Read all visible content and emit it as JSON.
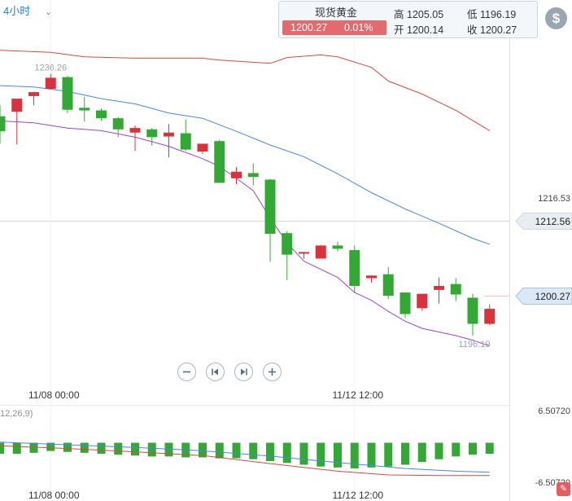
{
  "header": {
    "period_label": "4小时"
  },
  "quote": {
    "name": "现货黄金",
    "price": "1200.27",
    "change_pct": "0.01%",
    "high_label": "高",
    "high_value": "1205.05",
    "low_label": "低",
    "low_value": "1196.19",
    "open_label": "开",
    "open_value": "1200.14",
    "close_label": "收",
    "close_value": "1200.27"
  },
  "icons": {
    "dollar": "dollar-icon",
    "zoom_out": "minus-circle-icon",
    "prev": "step-back-icon",
    "next": "step-forward-icon",
    "zoom_in": "plus-circle-icon",
    "settings": "settings-icon"
  },
  "chart_data": [
    {
      "type": "candlestick",
      "title": "",
      "ylim": [
        1192.7,
        1242.0
      ],
      "y_axis_labels": [
        "1216.53"
      ],
      "price_tags": [
        "1212.56",
        "1200.27"
      ],
      "annotations": [
        "1236.26",
        "1196.19"
      ],
      "x_tick_labels": [
        "11/08 00:00",
        "11/12 12:00"
      ],
      "x_tick_index": [
        3,
        21
      ],
      "candles": [
        {
          "o": 1229.8,
          "h": 1231.5,
          "l": 1225.6,
          "c": 1227.5
        },
        {
          "o": 1230.5,
          "h": 1232.5,
          "l": 1225.5,
          "c": 1232.5
        },
        {
          "o": 1232.9,
          "h": 1233.5,
          "l": 1231.5,
          "c": 1233.5
        },
        {
          "o": 1234.0,
          "h": 1236.3,
          "l": 1234.0,
          "c": 1235.7
        },
        {
          "o": 1235.8,
          "h": 1236.0,
          "l": 1230.3,
          "c": 1230.8
        },
        {
          "o": 1231.1,
          "h": 1232.8,
          "l": 1229.0,
          "c": 1230.7
        },
        {
          "o": 1230.7,
          "h": 1231.0,
          "l": 1229.1,
          "c": 1229.5
        },
        {
          "o": 1229.5,
          "h": 1229.7,
          "l": 1226.6,
          "c": 1227.8
        },
        {
          "o": 1227.3,
          "h": 1228.4,
          "l": 1224.5,
          "c": 1228.0
        },
        {
          "o": 1227.8,
          "h": 1228.0,
          "l": 1225.3,
          "c": 1226.6
        },
        {
          "o": 1226.7,
          "h": 1228.6,
          "l": 1223.5,
          "c": 1227.3
        },
        {
          "o": 1227.2,
          "h": 1229.3,
          "l": 1224.5,
          "c": 1224.7
        },
        {
          "o": 1224.4,
          "h": 1225.4,
          "l": 1224.0,
          "c": 1225.6
        },
        {
          "o": 1226.0,
          "h": 1226.2,
          "l": 1219.6,
          "c": 1219.6
        },
        {
          "o": 1220.3,
          "h": 1222.0,
          "l": 1219.4,
          "c": 1221.3
        },
        {
          "o": 1221.1,
          "h": 1222.6,
          "l": 1219.2,
          "c": 1220.5
        },
        {
          "o": 1220.1,
          "h": 1220.2,
          "l": 1207.5,
          "c": 1211.8
        },
        {
          "o": 1211.9,
          "h": 1212.2,
          "l": 1204.7,
          "c": 1208.6
        },
        {
          "o": 1208.8,
          "h": 1209.0,
          "l": 1208.0,
          "c": 1209.0
        },
        {
          "o": 1208.0,
          "h": 1210.1,
          "l": 1208.0,
          "c": 1210.0
        },
        {
          "o": 1210.0,
          "h": 1210.6,
          "l": 1209.1,
          "c": 1209.5
        },
        {
          "o": 1209.3,
          "h": 1210.0,
          "l": 1202.8,
          "c": 1203.8
        },
        {
          "o": 1205.0,
          "h": 1205.4,
          "l": 1204.3,
          "c": 1205.4
        },
        {
          "o": 1205.6,
          "h": 1206.7,
          "l": 1201.8,
          "c": 1202.3
        },
        {
          "o": 1202.8,
          "h": 1202.8,
          "l": 1198.9,
          "c": 1199.5
        },
        {
          "o": 1200.4,
          "h": 1202.6,
          "l": 1200.0,
          "c": 1202.6
        },
        {
          "o": 1203.2,
          "h": 1205.1,
          "l": 1201.1,
          "c": 1203.8
        },
        {
          "o": 1204.1,
          "h": 1205.0,
          "l": 1201.5,
          "c": 1202.5
        },
        {
          "o": 1202.0,
          "h": 1202.6,
          "l": 1196.2,
          "c": 1198.0
        },
        {
          "o": 1198.0,
          "h": 1201.0,
          "l": 1197.8,
          "c": 1200.3
        }
      ],
      "bands": {
        "upper": [
          [
            0,
            1239.9
          ],
          [
            3,
            1239.6
          ],
          [
            5,
            1238.9
          ],
          [
            8,
            1238.7
          ],
          [
            12,
            1238.7
          ],
          [
            13,
            1238.4
          ],
          [
            16,
            1237.9
          ],
          [
            17,
            1238.8
          ],
          [
            19,
            1239.2
          ],
          [
            20,
            1238.9
          ],
          [
            22,
            1237.3
          ],
          [
            23,
            1235.2
          ],
          [
            25,
            1233.2
          ],
          [
            27,
            1230.7
          ],
          [
            29,
            1227.6
          ]
        ],
        "middle": [
          [
            0,
            1234.5
          ],
          [
            2,
            1234.3
          ],
          [
            4,
            1233.6
          ],
          [
            6,
            1232.5
          ],
          [
            8,
            1231.7
          ],
          [
            10,
            1230.3
          ],
          [
            12,
            1229.5
          ],
          [
            14,
            1227.5
          ],
          [
            16,
            1225.4
          ],
          [
            18,
            1223.6
          ],
          [
            20,
            1221.0
          ],
          [
            22,
            1218.1
          ],
          [
            24,
            1215.6
          ],
          [
            26,
            1213.4
          ],
          [
            28,
            1211.1
          ],
          [
            29,
            1210.2
          ]
        ],
        "lower": [
          [
            0,
            1229.1
          ],
          [
            2,
            1228.8
          ],
          [
            4,
            1228.0
          ],
          [
            6,
            1227.6
          ],
          [
            8,
            1226.6
          ],
          [
            10,
            1225.2
          ],
          [
            12,
            1223.3
          ],
          [
            13,
            1222.1
          ],
          [
            14,
            1220.3
          ],
          [
            15,
            1218.4
          ],
          [
            16,
            1214.2
          ],
          [
            17,
            1210.4
          ],
          [
            18,
            1207.6
          ],
          [
            20,
            1205.1
          ],
          [
            21,
            1202.8
          ],
          [
            22,
            1201.6
          ],
          [
            23,
            1199.9
          ],
          [
            24,
            1198.4
          ],
          [
            25,
            1197.3
          ],
          [
            27,
            1196.2
          ],
          [
            28,
            1195.5
          ],
          [
            29,
            1194.6
          ]
        ]
      }
    },
    {
      "type": "bar",
      "title": "",
      "indicator_label": "12,26,9)",
      "ylim": [
        -6.5072,
        6.5072
      ],
      "y_axis_labels": [
        "6.50720",
        "-6.50720"
      ],
      "x_tick_labels": [
        "11/08 00:00",
        "11/12 12:00"
      ],
      "values": [
        -1.2,
        -1.2,
        -1.1,
        -0.9,
        -1.0,
        -1.1,
        -1.2,
        -1.3,
        -1.4,
        -1.5,
        -1.5,
        -1.6,
        -1.6,
        -1.7,
        -1.7,
        -1.8,
        -2.0,
        -2.2,
        -2.4,
        -2.6,
        -2.7,
        -2.8,
        -2.7,
        -2.6,
        -2.4,
        -2.1,
        -1.8,
        -1.5,
        -1.3,
        -1.2
      ],
      "line_a": [
        [
          0,
          0.8
        ],
        [
          4,
          0.3
        ],
        [
          8,
          -0.2
        ],
        [
          12,
          -0.8
        ],
        [
          16,
          -1.8
        ],
        [
          20,
          -3.0
        ],
        [
          24,
          -4.1
        ],
        [
          27,
          -4.6
        ],
        [
          29,
          -4.8
        ]
      ],
      "line_b": [
        [
          0,
          0.1
        ],
        [
          4,
          -0.4
        ],
        [
          8,
          -1.0
        ],
        [
          12,
          -1.7
        ],
        [
          16,
          -3.2
        ],
        [
          20,
          -4.6
        ],
        [
          23,
          -5.3
        ],
        [
          26,
          -5.4
        ],
        [
          29,
          -5.4
        ]
      ]
    }
  ]
}
